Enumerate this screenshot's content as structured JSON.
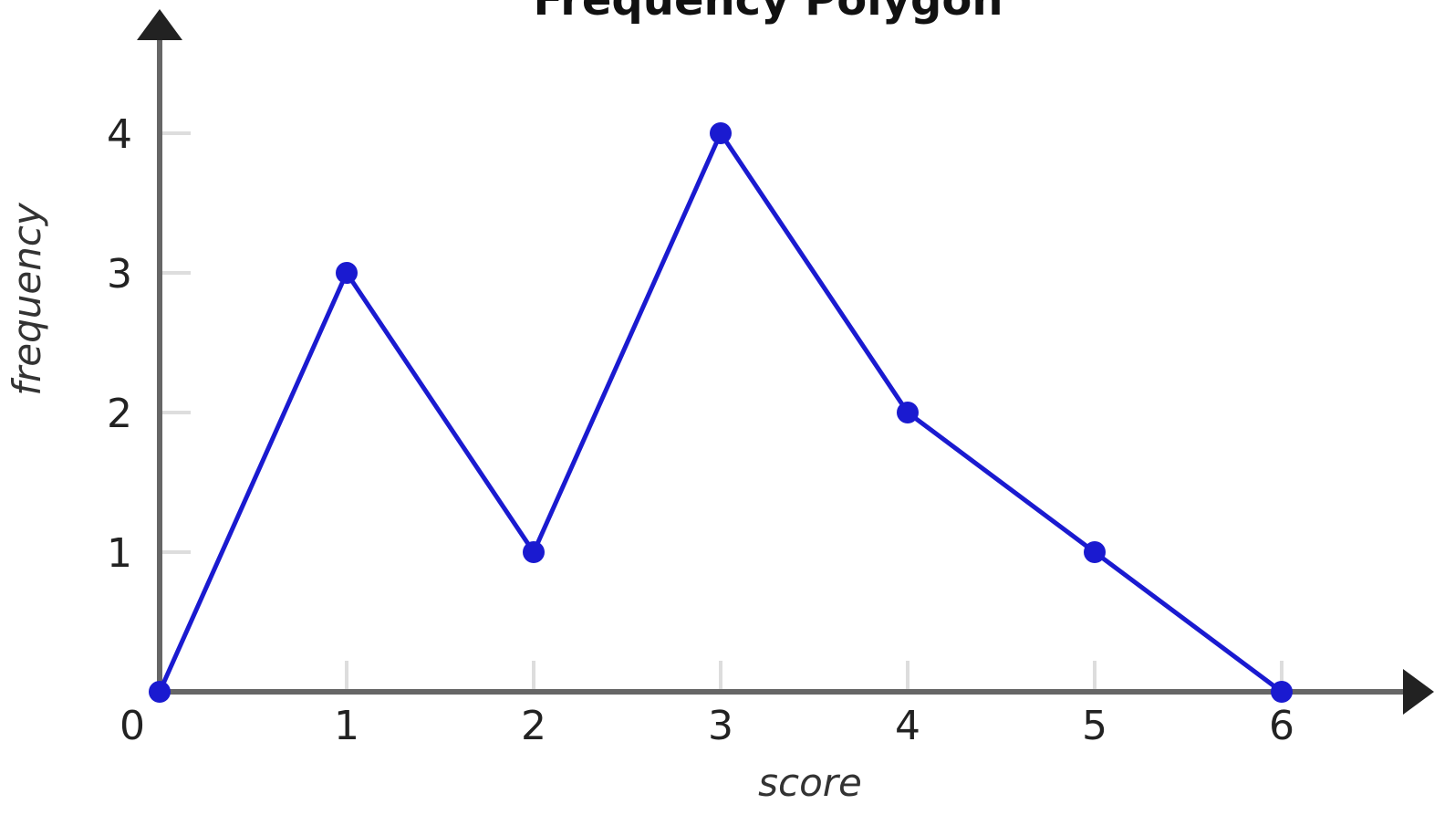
{
  "chart_data": {
    "type": "line",
    "title": "Frequency Polygon",
    "xlabel": "score",
    "ylabel": "frequency",
    "x": [
      0,
      1,
      2,
      3,
      4,
      5,
      6
    ],
    "series": [
      {
        "values": [
          0,
          3,
          1,
          4,
          2,
          1,
          0
        ]
      }
    ],
    "x_ticks": [
      "0",
      "1",
      "2",
      "3",
      "4",
      "5",
      "6"
    ],
    "y_ticks": [
      "1",
      "2",
      "3",
      "4"
    ],
    "xlim": [
      0,
      6.8
    ],
    "ylim": [
      0,
      4.9
    ],
    "grid": false,
    "legend": "none",
    "colors": {
      "series": "#1a1ad0",
      "axis": "#666666",
      "tick_mark": "#dddddd"
    }
  }
}
